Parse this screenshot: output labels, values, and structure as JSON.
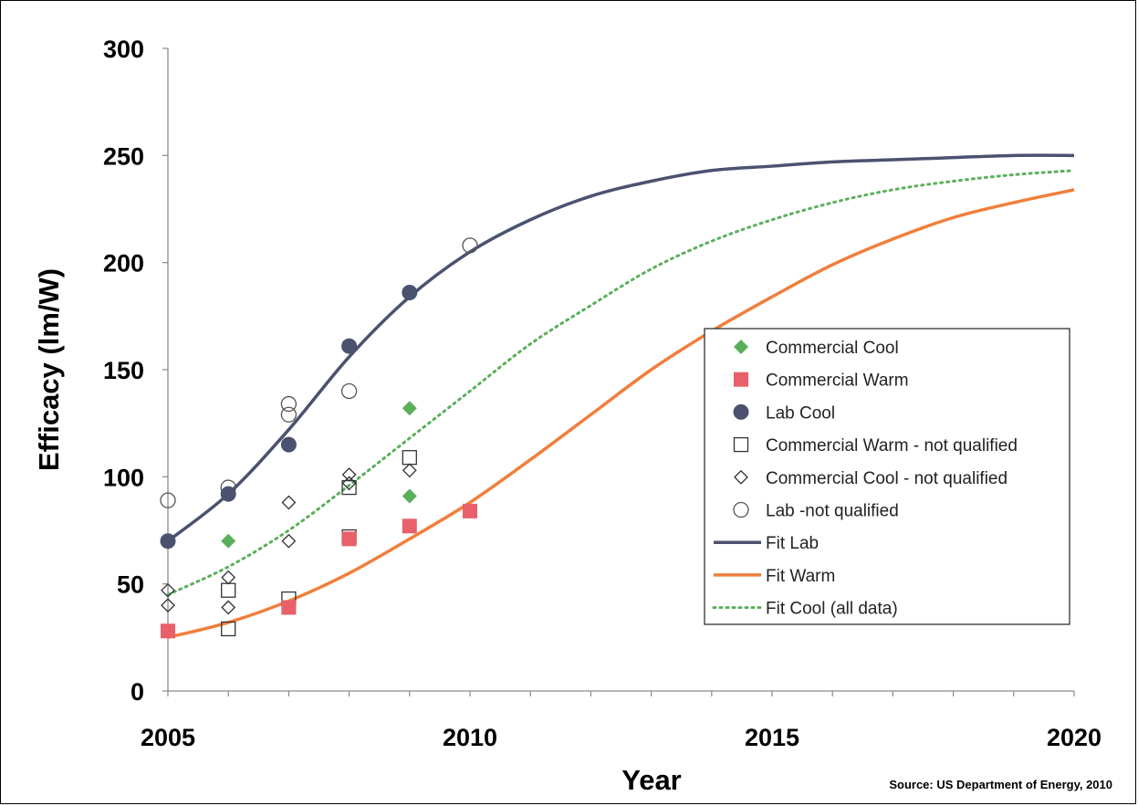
{
  "chart_data": {
    "type": "scatter",
    "xlabel": "Year",
    "ylabel": "Efficacy (lm/W)",
    "xlim": [
      2005,
      2020
    ],
    "ylim": [
      0,
      300
    ],
    "x_ticks": [
      "2005",
      "2010",
      "2015",
      "2020"
    ],
    "y_ticks": [
      "0",
      "50",
      "100",
      "150",
      "200",
      "250",
      "300"
    ],
    "grid": false,
    "legend_position": "right",
    "source": "Source: US Department of Energy, 2010",
    "colors": {
      "commercial_cool": "#5aaf5a",
      "commercial_warm": "#e8606a",
      "lab": "#4b5270",
      "fit_warm": "#f07f3c",
      "fit_cool": "#5aaf5a",
      "open_marker": "#333333"
    },
    "series": [
      {
        "name": "Commercial Cool",
        "kind": "marker",
        "marker": "diamond-filled",
        "points": [
          [
            2006,
            70
          ],
          [
            2009,
            132
          ],
          [
            2009,
            91
          ]
        ]
      },
      {
        "name": "Commercial Warm",
        "kind": "marker",
        "marker": "square-filled",
        "points": [
          [
            2005,
            28
          ],
          [
            2007,
            39
          ],
          [
            2008,
            71
          ],
          [
            2009,
            77
          ],
          [
            2010,
            84
          ]
        ]
      },
      {
        "name": "Lab Cool",
        "kind": "marker",
        "marker": "circle-filled",
        "points": [
          [
            2005,
            70
          ],
          [
            2006,
            92
          ],
          [
            2007,
            115
          ],
          [
            2008,
            161
          ],
          [
            2009,
            186
          ]
        ]
      },
      {
        "name": "Commercial Warm - not qualified",
        "kind": "marker",
        "marker": "square-open",
        "points": [
          [
            2006,
            47
          ],
          [
            2006,
            29
          ],
          [
            2007,
            43
          ],
          [
            2008,
            72
          ],
          [
            2008,
            95
          ],
          [
            2009,
            109
          ]
        ]
      },
      {
        "name": "Commercial Cool - not qualified",
        "kind": "marker",
        "marker": "diamond-open",
        "points": [
          [
            2005,
            47
          ],
          [
            2005,
            40
          ],
          [
            2006,
            53
          ],
          [
            2006,
            39
          ],
          [
            2007,
            88
          ],
          [
            2007,
            70
          ],
          [
            2008,
            101
          ],
          [
            2008,
            97
          ],
          [
            2009,
            103
          ]
        ]
      },
      {
        "name": "Lab -not qualified",
        "kind": "marker",
        "marker": "circle-open",
        "points": [
          [
            2005,
            89
          ],
          [
            2006,
            95
          ],
          [
            2007,
            134
          ],
          [
            2007,
            129
          ],
          [
            2008,
            140
          ],
          [
            2010,
            208
          ]
        ]
      },
      {
        "name": "Fit Lab",
        "kind": "line",
        "style": "solid",
        "points": [
          [
            2005,
            70
          ],
          [
            2006,
            92
          ],
          [
            2007,
            122
          ],
          [
            2008,
            156
          ],
          [
            2009,
            184
          ],
          [
            2010,
            205
          ],
          [
            2011,
            220
          ],
          [
            2012,
            231
          ],
          [
            2013,
            238
          ],
          [
            2014,
            243
          ],
          [
            2015,
            245
          ],
          [
            2016,
            247
          ],
          [
            2017,
            248
          ],
          [
            2018,
            249
          ],
          [
            2019,
            250
          ],
          [
            2020,
            250
          ]
        ]
      },
      {
        "name": "Fit Warm",
        "kind": "line",
        "style": "solid",
        "points": [
          [
            2005,
            25
          ],
          [
            2006,
            32
          ],
          [
            2007,
            42
          ],
          [
            2008,
            55
          ],
          [
            2009,
            71
          ],
          [
            2010,
            88
          ],
          [
            2011,
            108
          ],
          [
            2012,
            129
          ],
          [
            2013,
            150
          ],
          [
            2014,
            168
          ],
          [
            2015,
            184
          ],
          [
            2016,
            199
          ],
          [
            2017,
            211
          ],
          [
            2018,
            221
          ],
          [
            2019,
            228
          ],
          [
            2020,
            234
          ]
        ]
      },
      {
        "name": "Fit Cool (all data)",
        "kind": "line",
        "style": "dotted",
        "points": [
          [
            2005,
            45
          ],
          [
            2006,
            58
          ],
          [
            2007,
            75
          ],
          [
            2008,
            96
          ],
          [
            2009,
            118
          ],
          [
            2010,
            140
          ],
          [
            2011,
            162
          ],
          [
            2012,
            180
          ],
          [
            2013,
            197
          ],
          [
            2014,
            210
          ],
          [
            2015,
            220
          ],
          [
            2016,
            228
          ],
          [
            2017,
            234
          ],
          [
            2018,
            238
          ],
          [
            2019,
            241
          ],
          [
            2020,
            243
          ]
        ]
      }
    ]
  }
}
